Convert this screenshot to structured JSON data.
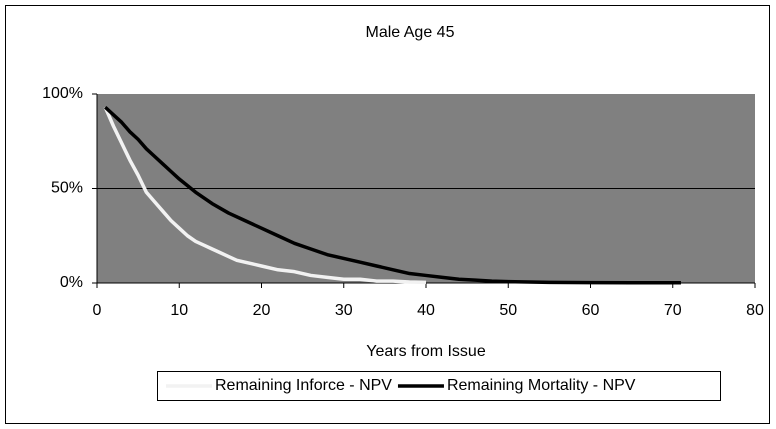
{
  "chart_data": {
    "type": "line",
    "title": "Male Age 45",
    "xlabel": "Years from Issue",
    "xlim": [
      0,
      80
    ],
    "xticks": [
      0,
      10,
      20,
      30,
      40,
      50,
      60,
      70,
      80
    ],
    "ylim": [
      0,
      100
    ],
    "yticks": [
      {
        "value": 0,
        "label": "0%"
      },
      {
        "value": 50,
        "label": "50%"
      },
      {
        "value": 100,
        "label": "100%"
      }
    ],
    "grid": true,
    "plot_background": "#808080",
    "legend": "bottom",
    "series": [
      {
        "name": "Remaining Inforce - NPV",
        "color": "#f2f2f2",
        "x": [
          1,
          2,
          3,
          4,
          5,
          6,
          7,
          8,
          9,
          10,
          11,
          12,
          13,
          14,
          15,
          16,
          17,
          18,
          19,
          20,
          22,
          24,
          26,
          28,
          30,
          32,
          34,
          36,
          38,
          40
        ],
        "values": [
          93,
          83,
          74,
          65,
          57,
          48,
          43,
          38,
          33,
          29,
          25,
          22,
          20,
          18,
          16,
          14,
          12,
          11,
          10,
          9,
          7,
          6,
          4,
          3,
          2,
          2,
          1,
          1,
          0.5,
          0.3
        ]
      },
      {
        "name": "Remaining Mortality - NPV",
        "color": "#000000",
        "x": [
          1,
          2,
          3,
          4,
          5,
          6,
          7,
          8,
          9,
          10,
          12,
          14,
          16,
          18,
          20,
          22,
          24,
          26,
          28,
          30,
          32,
          34,
          36,
          38,
          40,
          42,
          44,
          46,
          48,
          50,
          55,
          60,
          65,
          71
        ],
        "values": [
          93,
          89,
          85,
          80,
          76,
          71,
          67,
          63,
          59,
          55,
          48,
          42,
          37,
          33,
          29,
          25,
          21,
          18,
          15,
          13,
          11,
          9,
          7,
          5,
          4,
          3,
          2,
          1.5,
          1,
          0.7,
          0.3,
          0.2,
          0.1,
          0.1
        ]
      }
    ]
  }
}
